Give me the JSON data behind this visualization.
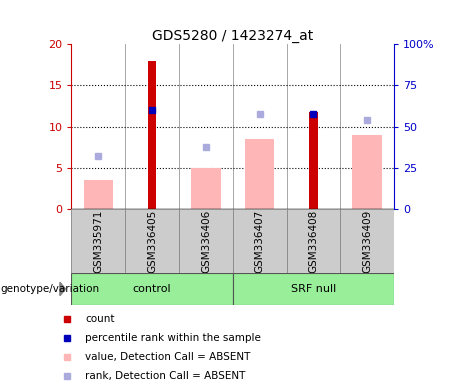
{
  "title": "GDS5280 / 1423274_at",
  "samples": [
    "GSM335971",
    "GSM336405",
    "GSM336406",
    "GSM336407",
    "GSM336408",
    "GSM336409"
  ],
  "count_values": [
    null,
    18.0,
    null,
    null,
    11.8,
    null
  ],
  "percentile_rank_values": [
    null,
    12.0,
    null,
    null,
    11.5,
    null
  ],
  "pink_bar_values": [
    3.5,
    null,
    5.0,
    8.5,
    null,
    9.0
  ],
  "blue_dot_values": [
    6.5,
    null,
    7.5,
    11.5,
    null,
    10.8
  ],
  "left_ylim": [
    0,
    20
  ],
  "right_ylim": [
    0,
    100
  ],
  "left_yticks": [
    0,
    5,
    10,
    15,
    20
  ],
  "right_yticks": [
    0,
    25,
    50,
    75,
    100
  ],
  "right_yticklabels": [
    "0",
    "25",
    "50",
    "75",
    "100%"
  ],
  "left_color": "#cc0000",
  "right_color": "#0000cc",
  "pink_color": "#ffb6b6",
  "blue_dot_color": "#aaaadd",
  "count_color": "#cc0000",
  "percentile_color": "#0000bb",
  "bg_color": "#ffffff",
  "label_bg": "#cccccc",
  "green_light": "#99ee99",
  "green_darker": "#55dd55",
  "dotted_yticks": [
    5,
    10,
    15
  ],
  "pink_bar_width": 0.55,
  "red_bar_width": 0.15,
  "control_group": "control",
  "srf_group": "SRF null",
  "legend_items": [
    {
      "color": "#cc0000",
      "label": "count"
    },
    {
      "color": "#0000bb",
      "label": "percentile rank within the sample"
    },
    {
      "color": "#ffb6b6",
      "label": "value, Detection Call = ABSENT"
    },
    {
      "color": "#aaaadd",
      "label": "rank, Detection Call = ABSENT"
    }
  ]
}
